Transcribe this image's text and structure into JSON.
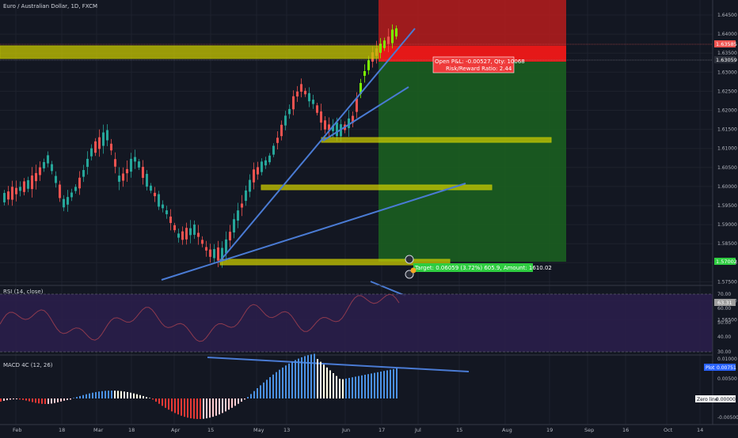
{
  "header": {
    "symbol_title": "Euro / Australian Dollar, 1D, FXCM"
  },
  "price_axis": {
    "ticks": [
      "1.64500",
      "1.64000",
      "1.63500",
      "1.63000",
      "1.62500",
      "1.62000",
      "1.61500",
      "1.61000",
      "1.60500",
      "1.60000",
      "1.59500",
      "1.59000",
      "1.58500",
      "1.58000",
      "1.57500",
      "1.57000",
      "1.56500"
    ],
    "current_price_label": "1.63585",
    "second_price_label": "1.63059",
    "target_price_label": "1.57002"
  },
  "time_axis": {
    "labels": [
      "Feb",
      "18",
      "Mar",
      "18",
      "Apr",
      "15",
      "May",
      "13",
      "Jun",
      "17",
      "Jul",
      "15",
      "Aug",
      "19",
      "Sep",
      "16",
      "Oct",
      "14"
    ]
  },
  "position": {
    "stats_line1": "Open P&L: -0.00527, Qty: 10068",
    "stats_line2": "Risk/Reward Ratio: 2.44",
    "target_label": "Target: 0.06059 (3.72%) 605.9, Amount: 1610.02"
  },
  "rsi": {
    "label": "RSI (14, close)",
    "ticks": [
      "70.00",
      "60.00",
      "50.00",
      "40.00",
      "30.00"
    ],
    "value_label": "63.31"
  },
  "macd": {
    "label": "MACD 4C (12, 26)",
    "ticks": [
      "0.01000",
      "0.00500",
      "-0.00500"
    ],
    "plot_label": "Plot",
    "plot_value": "0.00751",
    "zero_line_label": "Zero line",
    "zero_line_value": "0.00000"
  },
  "colors": {
    "background": "#131722",
    "candle_up": "#26a69a",
    "candle_up_bright": "#7cfc00",
    "candle_down": "#ef5350",
    "trendline": "#4a7bd4",
    "zone": "#c8c800",
    "stop_zone": "#b71c1c",
    "target_zone": "#1b5e20",
    "rsi_band": "#2a1e4a",
    "rsi_line": "#8e3a4e",
    "macd_up_strong": "#4a90e2",
    "macd_up_weak": "#fffde7",
    "macd_down_strong": "#e53935",
    "macd_down_weak": "#ffcdd2"
  }
}
